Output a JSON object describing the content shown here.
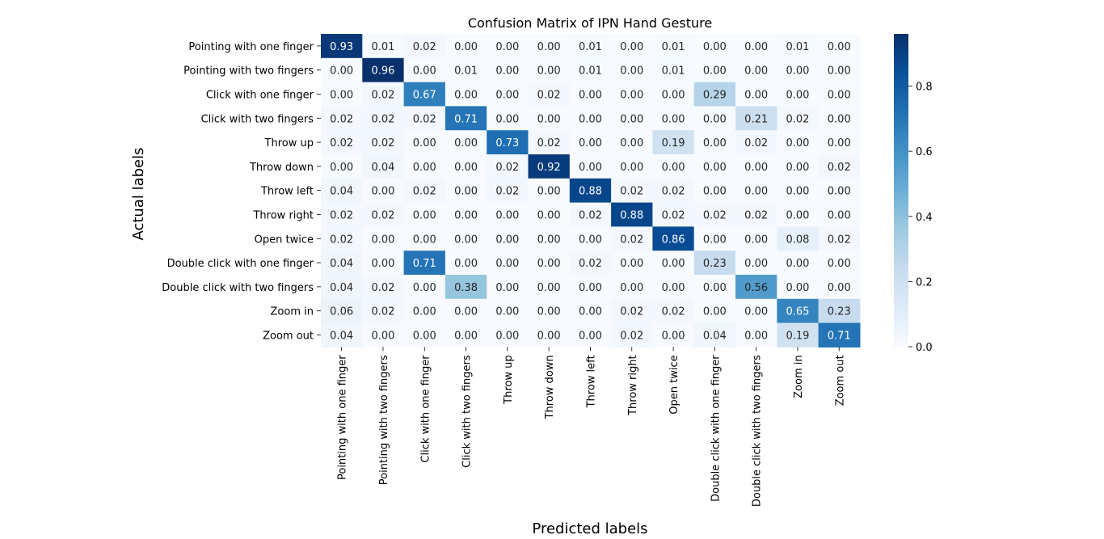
{
  "chart_data": {
    "type": "heatmap",
    "title": "Confusion Matrix of IPN Hand Gesture",
    "xlabel": "Predicted labels",
    "ylabel": "Actual labels",
    "categories": [
      "Pointing with one finger",
      "Pointing with two fingers",
      "Click with one finger",
      "Click with two fingers",
      "Throw up",
      "Throw down",
      "Throw left",
      "Throw right",
      "Open twice",
      "Double click with one finger",
      "Double click with two fingers",
      "Zoom in",
      "Zoom out"
    ],
    "values": [
      [
        0.93,
        0.01,
        0.02,
        0.0,
        0.0,
        0.0,
        0.01,
        0.0,
        0.01,
        0.0,
        0.0,
        0.01,
        0.0
      ],
      [
        0.0,
        0.96,
        0.0,
        0.01,
        0.0,
        0.0,
        0.01,
        0.0,
        0.01,
        0.0,
        0.0,
        0.0,
        0.0
      ],
      [
        0.0,
        0.02,
        0.67,
        0.0,
        0.0,
        0.02,
        0.0,
        0.0,
        0.0,
        0.29,
        0.0,
        0.0,
        0.0
      ],
      [
        0.02,
        0.02,
        0.02,
        0.71,
        0.0,
        0.0,
        0.0,
        0.0,
        0.0,
        0.0,
        0.21,
        0.02,
        0.0
      ],
      [
        0.02,
        0.02,
        0.0,
        0.0,
        0.73,
        0.02,
        0.0,
        0.0,
        0.19,
        0.0,
        0.02,
        0.0,
        0.0
      ],
      [
        0.0,
        0.04,
        0.0,
        0.0,
        0.02,
        0.92,
        0.0,
        0.0,
        0.0,
        0.0,
        0.0,
        0.0,
        0.02
      ],
      [
        0.04,
        0.0,
        0.02,
        0.0,
        0.02,
        0.0,
        0.88,
        0.02,
        0.02,
        0.0,
        0.0,
        0.0,
        0.0
      ],
      [
        0.02,
        0.02,
        0.0,
        0.0,
        0.0,
        0.0,
        0.02,
        0.88,
        0.02,
        0.02,
        0.02,
        0.0,
        0.0
      ],
      [
        0.02,
        0.0,
        0.0,
        0.0,
        0.0,
        0.0,
        0.0,
        0.02,
        0.86,
        0.0,
        0.0,
        0.08,
        0.02
      ],
      [
        0.04,
        0.0,
        0.71,
        0.0,
        0.0,
        0.0,
        0.02,
        0.0,
        0.0,
        0.23,
        0.0,
        0.0,
        0.0
      ],
      [
        0.04,
        0.02,
        0.0,
        0.38,
        0.0,
        0.0,
        0.0,
        0.0,
        0.0,
        0.0,
        0.56,
        0.0,
        0.0
      ],
      [
        0.06,
        0.02,
        0.0,
        0.0,
        0.0,
        0.0,
        0.0,
        0.02,
        0.02,
        0.0,
        0.0,
        0.65,
        0.23
      ],
      [
        0.04,
        0.0,
        0.0,
        0.0,
        0.0,
        0.0,
        0.0,
        0.02,
        0.0,
        0.04,
        0.0,
        0.19,
        0.71
      ]
    ],
    "colorbar": {
      "range": [
        0.0,
        0.96
      ],
      "ticks": [
        0.0,
        0.2,
        0.4,
        0.6,
        0.8
      ],
      "tick_labels": [
        "0.0",
        "0.2",
        "0.4",
        "0.6",
        "0.8"
      ],
      "colormap": "Blues"
    },
    "value_format": "2 decimals",
    "grid": false,
    "legend": "colorbar-right"
  }
}
